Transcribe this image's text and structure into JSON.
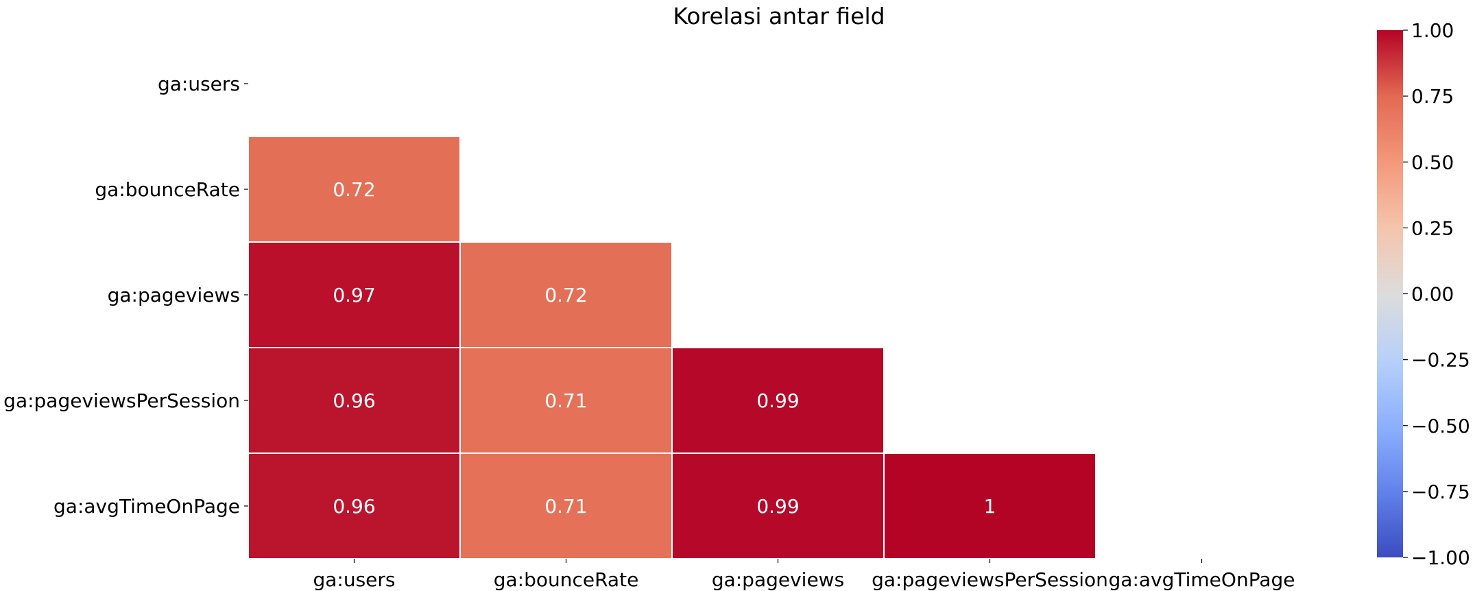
{
  "chart_data": {
    "type": "heatmap",
    "title": "Korelasi antar field",
    "x_labels": [
      "ga:users",
      "ga:bounceRate",
      "ga:pageviews",
      "ga:pageviewsPerSession",
      "ga:avgTimeOnPage"
    ],
    "y_labels": [
      "ga:users",
      "ga:bounceRate",
      "ga:pageviews",
      "ga:pageviewsPerSession",
      "ga:avgTimeOnPage"
    ],
    "matrix": [
      [
        null,
        null,
        null,
        null,
        null
      ],
      [
        0.72,
        null,
        null,
        null,
        null
      ],
      [
        0.97,
        0.72,
        null,
        null,
        null
      ],
      [
        0.96,
        0.71,
        0.99,
        null,
        null
      ],
      [
        0.96,
        0.71,
        0.99,
        1.0,
        null
      ]
    ],
    "annotations": [
      [
        null,
        null,
        null,
        null,
        null
      ],
      [
        "0.72",
        null,
        null,
        null,
        null
      ],
      [
        "0.97",
        "0.72",
        null,
        null,
        null
      ],
      [
        "0.96",
        "0.71",
        "0.99",
        null,
        null
      ],
      [
        "0.96",
        "0.71",
        "0.99",
        "1",
        null
      ]
    ],
    "mask": "upper-triangle",
    "colormap": "coolwarm",
    "vmin": -1.0,
    "vmax": 1.0,
    "colorbar_ticks": [
      1.0,
      0.75,
      0.5,
      0.25,
      0.0,
      -0.25,
      -0.5,
      -0.75,
      -1.0
    ],
    "colorbar_tick_labels": [
      "1.00",
      "0.75",
      "0.50",
      "0.25",
      "0.00",
      "−0.25",
      "−0.50",
      "−0.75",
      "−1.00"
    ]
  }
}
